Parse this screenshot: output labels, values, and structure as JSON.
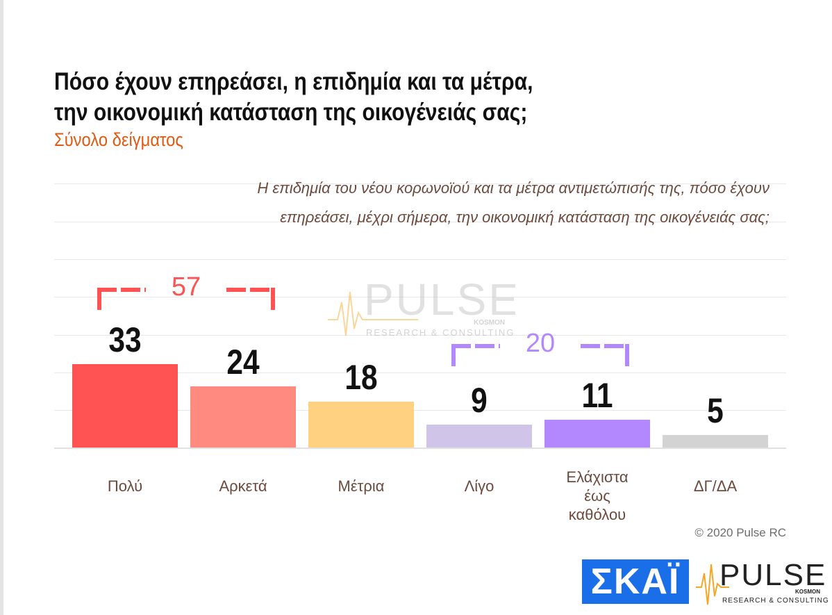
{
  "title_line1": "Πόσο έχουν επηρεάσει, η επιδημία και τα μέτρα,",
  "title_line2": "την οικονομική κατάσταση της οικογένειάς σας;",
  "subtitle": "Σύνολο δείγματος",
  "question_line1": "Η επιδημία του νέου κορωνοϊού και τα μέτρα αντιμετώπισής της, πόσο έχουν",
  "question_line2": "επηρεάσει, μέχρι σήμερα, την οικονομική κατάσταση της οικογένειάς σας;",
  "copyright": "© 2020 Pulse RC",
  "logos": {
    "skai": "ΣΚΑΪ",
    "pulse_main": "PULSE",
    "pulse_sub": "RESEARCH & CONSULTING",
    "pulse_kosmon": "KOSMON"
  },
  "watermark": {
    "main": "PULSE",
    "sub": "RESEARCH & CONSULTING",
    "kosmon": "KOSMON"
  },
  "chart_data": {
    "type": "bar",
    "categories": [
      "Πολύ",
      "Αρκετά",
      "Μέτρια",
      "Λίγο",
      "Ελάχιστα έως καθόλου",
      "ΔΓ/ΔΑ"
    ],
    "category_lines": [
      [
        "Πολύ"
      ],
      [
        "Αρκετά"
      ],
      [
        "Μέτρια"
      ],
      [
        "Λίγο"
      ],
      [
        "Ελάχιστα",
        "έως",
        "καθόλου"
      ],
      [
        "ΔΓ/ΔΑ"
      ]
    ],
    "values": [
      33,
      24,
      18,
      9,
      11,
      5
    ],
    "value_labels": [
      "33",
      "24",
      "18",
      "9",
      "11",
      "5"
    ],
    "colors": [
      "#ff5252",
      "#ff8a80",
      "#ffd180",
      "#d1c4e9",
      "#b388ff",
      "#d3d3d3"
    ],
    "ylim": [
      0,
      55
    ],
    "grid": true,
    "brackets": [
      {
        "label": "57",
        "from": 0,
        "to": 1,
        "color": "#ff5252"
      },
      {
        "label": "20",
        "from": 3,
        "to": 4,
        "color": "#b388ff"
      }
    ]
  }
}
